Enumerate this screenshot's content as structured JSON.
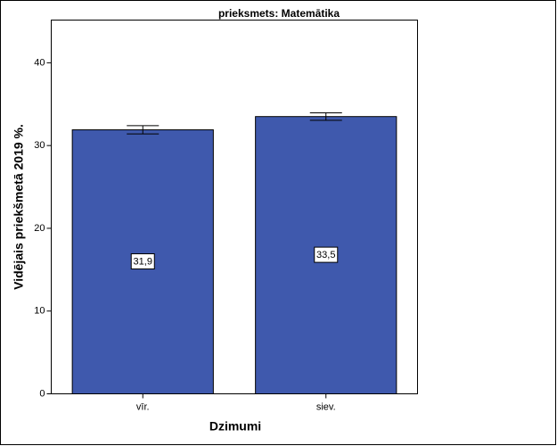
{
  "chart_data": {
    "type": "bar",
    "title": "prieksmets: Matemātika",
    "x_label": "Dzimumi",
    "y_label": "Vidējais priekšmetā 2019 %.",
    "categories": [
      "vīr.",
      "siev."
    ],
    "values": [
      31.9,
      33.5
    ],
    "value_labels": [
      "31,9",
      "33,5"
    ],
    "errors": [
      0.5,
      0.45
    ],
    "color": "#3f59ad",
    "ylim": [
      0,
      45
    ],
    "yticks": [
      0,
      10,
      20,
      30,
      40
    ],
    "grid": false
  }
}
